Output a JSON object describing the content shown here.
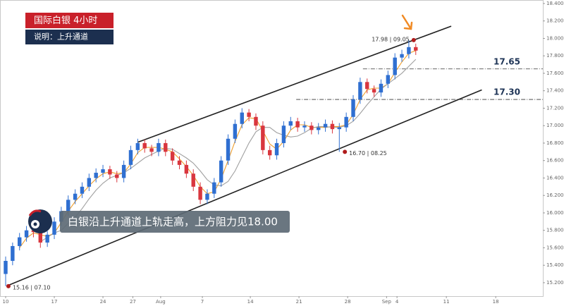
{
  "chart_data": {
    "type": "candlestick",
    "title": "国际白银  4小时",
    "subtitle": "说明：上升通道",
    "caption": "白银沿上升通道上轨走高，上方阻力见18.00",
    "up_color": "#2f6fd1",
    "down_color": "#d9363e",
    "xlim": [
      -0.811,
      77.28
    ],
    "ylim": [
      15.046,
      18.44
    ],
    "xticks": [
      {
        "value": 0,
        "label": "10"
      },
      {
        "value": 7,
        "label": "17"
      },
      {
        "value": 14,
        "label": "24"
      },
      {
        "value": 18.3,
        "label": "27"
      },
      {
        "value": 22.3,
        "label": "Aug"
      },
      {
        "value": 28.3,
        "label": "7"
      },
      {
        "value": 35.2,
        "label": "14"
      },
      {
        "value": 42.2,
        "label": "21"
      },
      {
        "value": 49.2,
        "label": "28"
      },
      {
        "value": 54.8,
        "label": "Sep"
      },
      {
        "value": 56.3,
        "label": "4"
      },
      {
        "value": 63.4,
        "label": "11"
      },
      {
        "value": 70.5,
        "label": "18"
      }
    ],
    "yticks": [
      {
        "value": 18.4,
        "label": "18.400"
      },
      {
        "value": 18.2,
        "label": "18.200"
      },
      {
        "value": 18.0,
        "label": "18.000"
      },
      {
        "value": 17.8,
        "label": "17.800"
      },
      {
        "value": 17.6,
        "label": "17.600"
      },
      {
        "value": 17.4,
        "label": "17.400"
      },
      {
        "value": 17.2,
        "label": "17.200"
      },
      {
        "value": 17.0,
        "label": "17.000"
      },
      {
        "value": 16.8,
        "label": "16.800"
      },
      {
        "value": 16.6,
        "label": "16.600"
      },
      {
        "value": 16.4,
        "label": "16.400"
      },
      {
        "value": 16.2,
        "label": "16.200"
      },
      {
        "value": 16.0,
        "label": "16.000"
      },
      {
        "value": 15.8,
        "label": "15.800"
      },
      {
        "value": 15.6,
        "label": "15.600"
      },
      {
        "value": 15.4,
        "label": "15.400"
      },
      {
        "value": 15.2,
        "label": "15.200"
      }
    ],
    "candles": [
      [
        15.3,
        15.5,
        15.16,
        15.45
      ],
      [
        15.45,
        15.66,
        15.4,
        15.62
      ],
      [
        15.62,
        15.77,
        15.57,
        15.72
      ],
      [
        15.72,
        15.85,
        15.67,
        15.8
      ],
      [
        15.8,
        15.84,
        15.72,
        15.78
      ],
      [
        15.78,
        15.81,
        15.6,
        15.66
      ],
      [
        15.66,
        15.79,
        15.61,
        15.75
      ],
      [
        15.75,
        15.95,
        15.7,
        15.9
      ],
      [
        15.9,
        16.07,
        15.85,
        16.02
      ],
      [
        16.02,
        16.2,
        15.97,
        16.15
      ],
      [
        16.15,
        16.27,
        16.1,
        16.22
      ],
      [
        16.22,
        16.35,
        16.17,
        16.3
      ],
      [
        16.3,
        16.45,
        16.25,
        16.4
      ],
      [
        16.4,
        16.51,
        16.35,
        16.46
      ],
      [
        16.46,
        16.55,
        16.41,
        16.5
      ],
      [
        16.5,
        16.54,
        16.39,
        16.44
      ],
      [
        16.44,
        16.48,
        16.35,
        16.4
      ],
      [
        16.4,
        16.6,
        16.35,
        16.55
      ],
      [
        16.55,
        16.77,
        16.5,
        16.72
      ],
      [
        16.72,
        16.85,
        16.67,
        16.8
      ],
      [
        16.8,
        16.84,
        16.69,
        16.74
      ],
      [
        16.74,
        16.78,
        16.65,
        16.7
      ],
      [
        16.7,
        16.85,
        16.65,
        16.8
      ],
      [
        16.8,
        16.84,
        16.65,
        16.7
      ],
      [
        16.7,
        16.74,
        16.55,
        16.6
      ],
      [
        16.6,
        16.65,
        16.5,
        16.55
      ],
      [
        16.55,
        16.6,
        16.4,
        16.45
      ],
      [
        16.45,
        16.5,
        16.25,
        16.3
      ],
      [
        16.3,
        16.35,
        16.1,
        16.15
      ],
      [
        16.15,
        16.27,
        16.1,
        16.22
      ],
      [
        16.22,
        16.4,
        16.17,
        16.35
      ],
      [
        16.35,
        16.65,
        16.3,
        16.6
      ],
      [
        16.6,
        16.9,
        16.55,
        16.85
      ],
      [
        16.85,
        17.07,
        16.8,
        17.02
      ],
      [
        17.02,
        17.2,
        16.97,
        17.15
      ],
      [
        17.15,
        17.19,
        17.05,
        17.1
      ],
      [
        17.1,
        17.14,
        16.95,
        17.0
      ],
      [
        17.0,
        17.05,
        16.67,
        16.72
      ],
      [
        16.72,
        16.77,
        16.61,
        16.66
      ],
      [
        16.66,
        16.85,
        16.61,
        16.8
      ],
      [
        16.8,
        17.05,
        16.75,
        17.0
      ],
      [
        17.0,
        17.1,
        16.95,
        17.05
      ],
      [
        17.05,
        17.09,
        16.93,
        16.98
      ],
      [
        16.98,
        17.05,
        16.93,
        17.0
      ],
      [
        17.0,
        17.04,
        16.9,
        16.95
      ],
      [
        16.95,
        17.03,
        16.9,
        16.98
      ],
      [
        16.98,
        17.07,
        16.93,
        17.02
      ],
      [
        17.02,
        17.06,
        16.91,
        16.96
      ],
      [
        16.96,
        17.03,
        16.7,
        16.98
      ],
      [
        16.98,
        17.15,
        16.93,
        17.1
      ],
      [
        17.1,
        17.35,
        17.05,
        17.3
      ],
      [
        17.3,
        17.55,
        17.25,
        17.5
      ],
      [
        17.5,
        17.54,
        17.37,
        17.42
      ],
      [
        17.42,
        17.46,
        17.33,
        17.38
      ],
      [
        17.38,
        17.53,
        17.33,
        17.48
      ],
      [
        17.48,
        17.63,
        17.43,
        17.58
      ],
      [
        17.58,
        17.83,
        17.53,
        17.78
      ],
      [
        17.78,
        17.87,
        17.73,
        17.82
      ],
      [
        17.82,
        17.98,
        17.77,
        17.9
      ],
      [
        17.9,
        17.94,
        17.81,
        17.86
      ]
    ],
    "series": [
      {
        "color": "#f0a030",
        "values": [
          null,
          null,
          15.6,
          15.71,
          15.77,
          15.75,
          15.73,
          15.77,
          15.89,
          16.02,
          16.13,
          16.22,
          16.31,
          16.39,
          16.45,
          16.47,
          16.45,
          16.46,
          16.56,
          16.69,
          16.75,
          16.75,
          16.75,
          16.73,
          16.7,
          16.62,
          16.53,
          16.43,
          16.3,
          16.22,
          16.24,
          16.39,
          16.6,
          16.82,
          17.01,
          17.09,
          17.08,
          16.94,
          16.79,
          16.73,
          16.82,
          16.95,
          17.01,
          17.01,
          16.98,
          16.98,
          16.98,
          16.99,
          16.99,
          17.01,
          17.13,
          17.3,
          17.41,
          17.43,
          17.43,
          17.48,
          17.61,
          17.73,
          17.83,
          17.86
        ]
      },
      {
        "color": "#a0a0a0",
        "values": [
          null,
          null,
          null,
          null,
          null,
          15.67,
          15.72,
          15.77,
          15.8,
          15.88,
          15.95,
          16.05,
          16.16,
          16.26,
          16.34,
          16.4,
          16.43,
          16.46,
          16.51,
          16.57,
          16.63,
          16.67,
          16.71,
          16.74,
          16.73,
          16.68,
          16.63,
          16.57,
          16.48,
          16.38,
          16.32,
          16.31,
          16.36,
          16.48,
          16.64,
          16.8,
          16.93,
          16.98,
          16.98,
          16.92,
          16.89,
          16.87,
          16.88,
          16.92,
          16.97,
          16.99,
          16.99,
          16.98,
          16.98,
          17.0,
          17.05,
          17.14,
          17.24,
          17.33,
          17.42,
          17.48,
          17.54,
          17.6,
          17.68,
          17.76
        ]
      }
    ],
    "trendlines": [
      {
        "color": "#222222",
        "x": [
          19.0,
          64.1
        ],
        "y": [
          16.81,
          18.14
        ]
      },
      {
        "color": "#222222",
        "x": [
          0.4,
          68.5
        ],
        "y": [
          15.17,
          17.41
        ]
      }
    ],
    "levels": [
      {
        "value": 17.65,
        "from": 51.4
      },
      {
        "value": 17.3,
        "label": "17.30",
        "from": 41.8
      }
    ],
    "annotations": [
      {
        "label": "15.16 | 07.10",
        "x": 0.4,
        "y": 15.16
      },
      {
        "label": "17.98 | 09.05",
        "x": 58.7,
        "y": 17.98
      },
      {
        "label": "16.70 | 08.25",
        "x": 48.8,
        "y": 16.7
      }
    ]
  }
}
